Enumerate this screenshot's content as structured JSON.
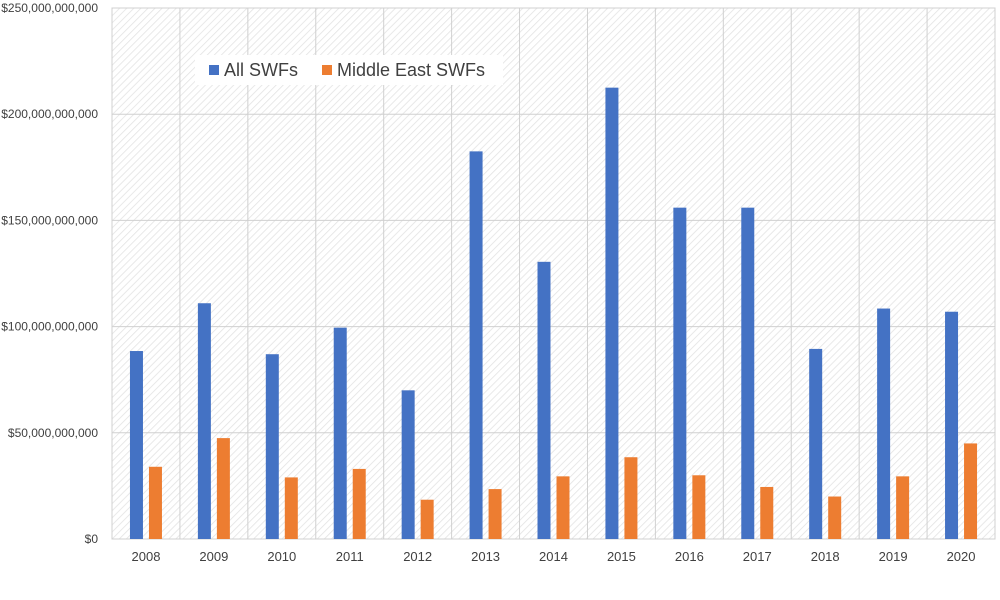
{
  "chart_data": {
    "type": "bar",
    "categories": [
      "2008",
      "2009",
      "2010",
      "2011",
      "2012",
      "2013",
      "2014",
      "2015",
      "2016",
      "2017",
      "2018",
      "2019",
      "2020"
    ],
    "series": [
      {
        "name": "All SWFs",
        "color": "#4472C4",
        "values": [
          88500000000,
          111000000000,
          87000000000,
          99500000000,
          70000000000,
          182500000000,
          130500000000,
          212500000000,
          156000000000,
          156000000000,
          89500000000,
          108500000000,
          107000000000
        ]
      },
      {
        "name": "Middle East SWFs",
        "color": "#ED7D31",
        "values": [
          34000000000,
          47500000000,
          29000000000,
          33000000000,
          18500000000,
          23500000000,
          29500000000,
          38500000000,
          30000000000,
          24500000000,
          20000000000,
          29500000000,
          45000000000
        ]
      }
    ],
    "ylim": [
      0,
      250000000000
    ],
    "y_ticks": [
      "$0",
      "$50,000,000,000",
      "$100,000,000,000",
      "$150,000,000,000",
      "$200,000,000,000",
      "$250,000,000,000"
    ],
    "y_tick_values": [
      0,
      50000000000,
      100000000000,
      150000000000,
      200000000000,
      250000000000
    ],
    "grid": true,
    "legend_position": "top-left",
    "title": "",
    "xlabel": "",
    "ylabel": ""
  }
}
